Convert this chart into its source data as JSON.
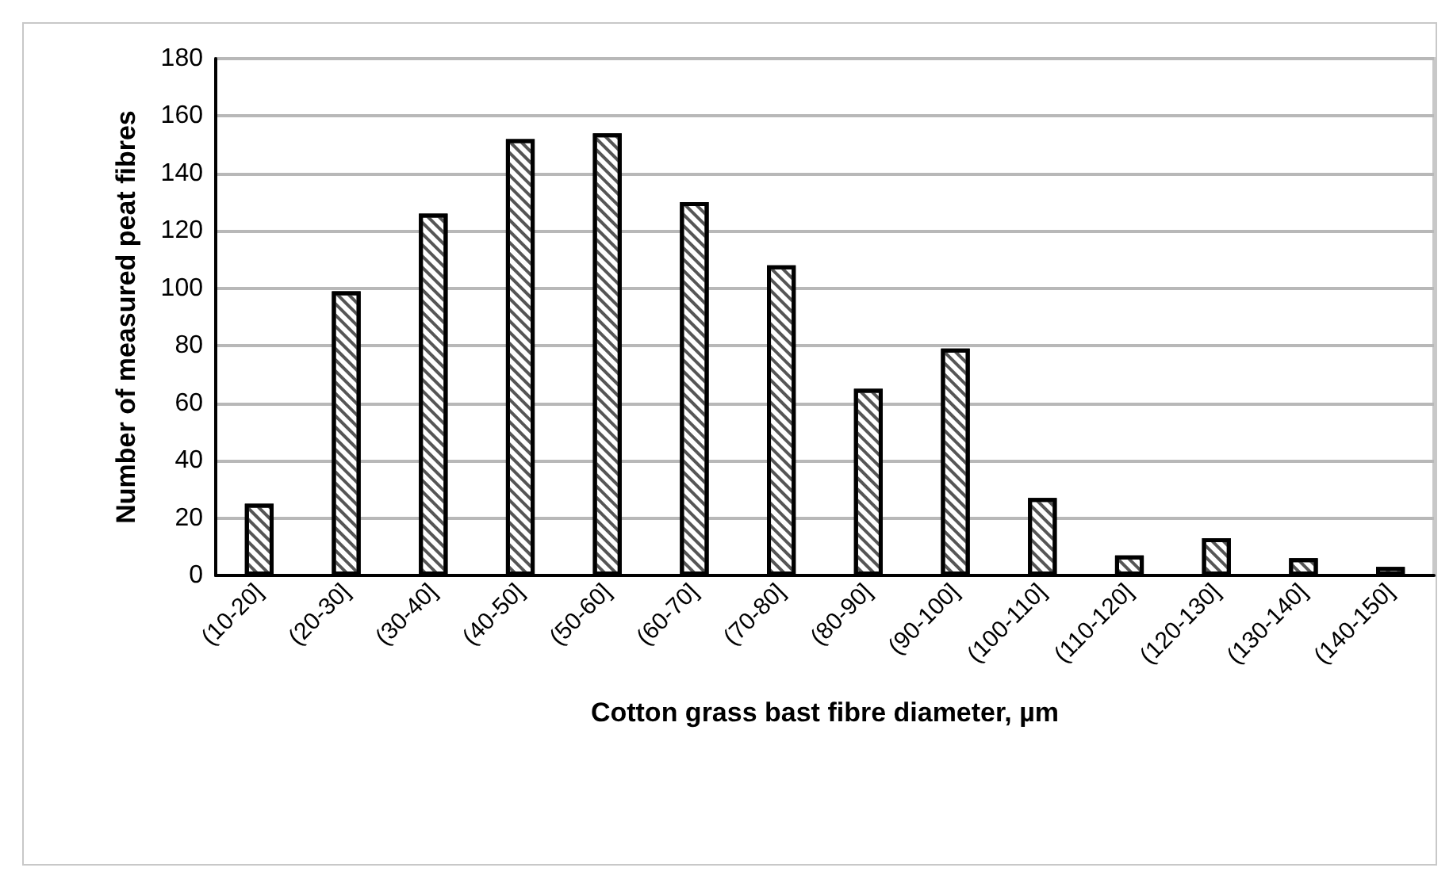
{
  "chart_data": {
    "type": "bar",
    "xlabel": "Cotton grass bast fibre diameter, µm",
    "ylabel": "Number of measured peat fibres",
    "categories": [
      "(10-20]",
      "(20-30]",
      "(30-40]",
      "(40-50]",
      "(50-60]",
      "(60-70]",
      "(70-80]",
      "(80-90]",
      "(90-100]",
      "(100-110]",
      "(110-120]",
      "(120-130]",
      "(130-140]",
      "(140-150]"
    ],
    "values": [
      25,
      99,
      126,
      152,
      154,
      130,
      108,
      65,
      79,
      27,
      7,
      13,
      6,
      3
    ],
    "color": "#ffffff",
    "ylim": [
      0,
      180
    ],
    "yticks": [
      0,
      20,
      40,
      60,
      80,
      100,
      120,
      140,
      160,
      180
    ],
    "grid": "y"
  }
}
